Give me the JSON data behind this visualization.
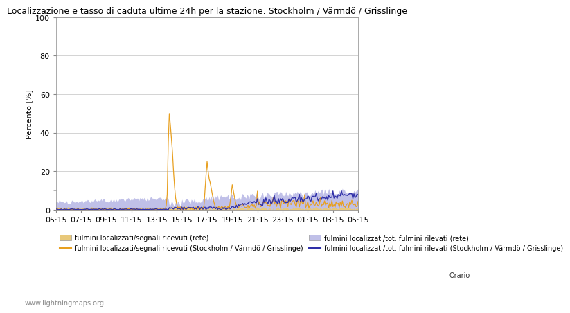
{
  "title": "Localizzazione e tasso di caduta ultime 24h per la stazione: Stockholm / Värmdö / Grisslinge",
  "ylabel": "Percento [%]",
  "ylim": [
    0,
    100
  ],
  "background_color": "#ffffff",
  "grid_color": "#cccccc",
  "x_labels": [
    "05:15",
    "07:15",
    "09:15",
    "11:15",
    "13:15",
    "15:15",
    "17:15",
    "19:15",
    "21:15",
    "23:15",
    "01:15",
    "03:15",
    "05:15"
  ],
  "legend_entries": [
    "fulmini localizzati/segnali ricevuti (rete)",
    "fulmini localizzati/segnali ricevuti (Stockholm / Värmdö / Grisslinge)",
    "fulmini localizzati/tot. fulmini rilevati (rete)",
    "fulmini localizzati/tot. fulmini rilevati (Stockholm / Värmdö / Grisslinge)"
  ],
  "fill_color_rete_segnali": "#e8c87a",
  "fill_color_rete_tot": "#c0c0e8",
  "line_color_station_segnali": "#e8a020",
  "line_color_station_tot": "#3030a8",
  "watermark": "www.lightningmaps.org",
  "n_points": 289,
  "orario_label": "Orario"
}
